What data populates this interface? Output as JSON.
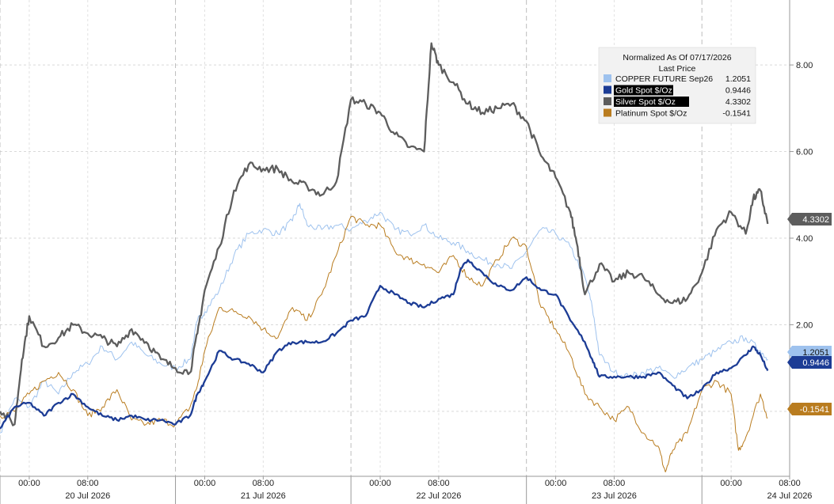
{
  "chart_data": {
    "type": "line",
    "legend": {
      "title": "Normalized As Of 07/17/2026",
      "subtitle": "Last Price"
    },
    "y_axis": {
      "min": -1.5,
      "max": 9.5,
      "ticks": [
        {
          "value": 0,
          "label": "0.00"
        },
        {
          "value": 2,
          "label": "2.00"
        },
        {
          "value": 4,
          "label": "4.00"
        },
        {
          "value": 6,
          "label": "6.00"
        },
        {
          "value": 8,
          "label": "8.00"
        }
      ],
      "position": "right"
    },
    "x_axis": {
      "days": [
        "20 Jul 2026",
        "21 Jul 2026",
        "22 Jul 2026",
        "23 Jul 2026",
        "24 Jul 2026"
      ],
      "hour_labels": [
        "00:00",
        "08:00"
      ],
      "range_hours": [
        -4,
        104
      ]
    },
    "grid": true,
    "series": [
      {
        "name": "COPPER FUTURE Sep26",
        "last": "1.2051",
        "color": "#9ec2ee",
        "width": 1,
        "points": [
          [
            -4,
            -0.5
          ],
          [
            -2,
            0.3
          ],
          [
            0,
            0.1
          ],
          [
            2,
            0.7
          ],
          [
            4,
            0.4
          ],
          [
            6,
            0.9
          ],
          [
            8,
            1.1
          ],
          [
            10,
            1.5
          ],
          [
            12,
            1.2
          ],
          [
            14,
            1.6
          ],
          [
            16,
            1.3
          ],
          [
            18,
            1.1
          ],
          [
            20,
            1.0
          ],
          [
            22,
            1.2
          ],
          [
            23,
            2.1
          ],
          [
            24,
            2.3
          ],
          [
            26,
            2.8
          ],
          [
            28,
            3.6
          ],
          [
            30,
            4.1
          ],
          [
            32,
            4.2
          ],
          [
            34,
            4.1
          ],
          [
            36,
            4.4
          ],
          [
            37,
            4.8
          ],
          [
            38,
            4.3
          ],
          [
            40,
            4.2
          ],
          [
            42,
            4.3
          ],
          [
            44,
            4.2
          ],
          [
            46,
            4.4
          ],
          [
            48,
            4.6
          ],
          [
            50,
            4.2
          ],
          [
            52,
            4.1
          ],
          [
            54,
            4.3
          ],
          [
            56,
            4.0
          ],
          [
            58,
            3.9
          ],
          [
            60,
            3.7
          ],
          [
            62,
            3.5
          ],
          [
            64,
            3.4
          ],
          [
            66,
            3.3
          ],
          [
            68,
            3.7
          ],
          [
            70,
            4.2
          ],
          [
            72,
            4.1
          ],
          [
            74,
            3.8
          ],
          [
            76,
            3.1
          ],
          [
            77,
            2.4
          ],
          [
            78,
            1.3
          ],
          [
            80,
            0.9
          ],
          [
            82,
            0.8
          ],
          [
            84,
            0.9
          ],
          [
            86,
            1.0
          ],
          [
            88,
            0.8
          ],
          [
            90,
            1.0
          ],
          [
            92,
            1.2
          ],
          [
            94,
            1.4
          ],
          [
            96,
            1.6
          ],
          [
            98,
            1.7
          ],
          [
            100,
            1.4
          ],
          [
            101,
            1.2
          ]
        ]
      },
      {
        "name": "Gold Spot $/Oz",
        "last": "0.9446",
        "color": "#1c3c95",
        "width": 2.3,
        "points": [
          [
            -4,
            -0.4
          ],
          [
            -2,
            0.1
          ],
          [
            0,
            0.2
          ],
          [
            2,
            -0.1
          ],
          [
            4,
            0.2
          ],
          [
            6,
            0.4
          ],
          [
            8,
            0.1
          ],
          [
            10,
            -0.1
          ],
          [
            12,
            -0.2
          ],
          [
            14,
            -0.1
          ],
          [
            16,
            -0.2
          ],
          [
            18,
            -0.2
          ],
          [
            20,
            -0.3
          ],
          [
            22,
            -0.1
          ],
          [
            23,
            0.4
          ],
          [
            24,
            0.7
          ],
          [
            26,
            1.4
          ],
          [
            28,
            1.2
          ],
          [
            30,
            1.1
          ],
          [
            32,
            0.9
          ],
          [
            34,
            1.4
          ],
          [
            36,
            1.6
          ],
          [
            38,
            1.6
          ],
          [
            40,
            1.6
          ],
          [
            42,
            1.8
          ],
          [
            44,
            2.1
          ],
          [
            46,
            2.2
          ],
          [
            48,
            2.9
          ],
          [
            50,
            2.7
          ],
          [
            52,
            2.5
          ],
          [
            54,
            2.4
          ],
          [
            56,
            2.6
          ],
          [
            58,
            2.7
          ],
          [
            59,
            3.3
          ],
          [
            60,
            3.5
          ],
          [
            62,
            3.2
          ],
          [
            64,
            2.9
          ],
          [
            66,
            2.8
          ],
          [
            68,
            3.1
          ],
          [
            70,
            2.8
          ],
          [
            72,
            2.7
          ],
          [
            74,
            2.1
          ],
          [
            76,
            1.6
          ],
          [
            77,
            1.2
          ],
          [
            78,
            0.8
          ],
          [
            80,
            0.8
          ],
          [
            82,
            0.8
          ],
          [
            84,
            0.8
          ],
          [
            86,
            0.9
          ],
          [
            88,
            0.6
          ],
          [
            90,
            0.3
          ],
          [
            92,
            0.5
          ],
          [
            94,
            0.9
          ],
          [
            96,
            1.0
          ],
          [
            98,
            1.3
          ],
          [
            99,
            1.5
          ],
          [
            100,
            1.3
          ],
          [
            101,
            0.94
          ]
        ]
      },
      {
        "name": "Silver Spot $/Oz",
        "last": "4.3302",
        "color": "#5d5d5d",
        "width": 2.3,
        "points": [
          [
            -4,
            0.0
          ],
          [
            -2,
            -0.3
          ],
          [
            -1,
            1.2
          ],
          [
            0,
            2.2
          ],
          [
            2,
            1.5
          ],
          [
            4,
            1.7
          ],
          [
            6,
            2.0
          ],
          [
            8,
            1.8
          ],
          [
            10,
            1.7
          ],
          [
            12,
            1.5
          ],
          [
            14,
            1.9
          ],
          [
            16,
            1.6
          ],
          [
            18,
            1.2
          ],
          [
            20,
            1.0
          ],
          [
            22,
            0.9
          ],
          [
            23,
            1.8
          ],
          [
            24,
            2.8
          ],
          [
            26,
            3.8
          ],
          [
            28,
            5.1
          ],
          [
            30,
            5.7
          ],
          [
            32,
            5.6
          ],
          [
            34,
            5.6
          ],
          [
            36,
            5.3
          ],
          [
            38,
            5.2
          ],
          [
            40,
            5.0
          ],
          [
            42,
            5.3
          ],
          [
            44,
            7.2
          ],
          [
            46,
            7.1
          ],
          [
            48,
            6.9
          ],
          [
            50,
            6.4
          ],
          [
            52,
            6.1
          ],
          [
            54,
            6.0
          ],
          [
            55,
            8.5
          ],
          [
            56,
            8.0
          ],
          [
            58,
            7.6
          ],
          [
            60,
            7.1
          ],
          [
            62,
            6.9
          ],
          [
            64,
            7.0
          ],
          [
            66,
            7.1
          ],
          [
            68,
            6.7
          ],
          [
            70,
            5.9
          ],
          [
            72,
            5.4
          ],
          [
            74,
            4.6
          ],
          [
            75,
            3.8
          ],
          [
            76,
            2.7
          ],
          [
            78,
            3.4
          ],
          [
            80,
            3.0
          ],
          [
            82,
            3.2
          ],
          [
            84,
            3.1
          ],
          [
            86,
            2.7
          ],
          [
            88,
            2.5
          ],
          [
            90,
            2.6
          ],
          [
            92,
            3.2
          ],
          [
            94,
            4.2
          ],
          [
            96,
            4.6
          ],
          [
            98,
            4.1
          ],
          [
            99,
            4.9
          ],
          [
            100,
            5.1
          ],
          [
            101,
            4.33
          ]
        ]
      },
      {
        "name": "Platinum Spot $/Oz",
        "last": "-0.1541",
        "color": "#b97c1f",
        "width": 1,
        "points": [
          [
            -4,
            -0.1
          ],
          [
            -2,
            0.0
          ],
          [
            0,
            0.4
          ],
          [
            2,
            0.7
          ],
          [
            4,
            0.9
          ],
          [
            6,
            0.5
          ],
          [
            8,
            -0.1
          ],
          [
            10,
            0.1
          ],
          [
            12,
            0.5
          ],
          [
            14,
            -0.2
          ],
          [
            16,
            -0.3
          ],
          [
            18,
            -0.2
          ],
          [
            20,
            -0.3
          ],
          [
            22,
            0.1
          ],
          [
            23,
            0.6
          ],
          [
            24,
            1.4
          ],
          [
            26,
            2.4
          ],
          [
            28,
            2.3
          ],
          [
            30,
            2.2
          ],
          [
            32,
            1.9
          ],
          [
            34,
            1.7
          ],
          [
            36,
            2.4
          ],
          [
            38,
            2.1
          ],
          [
            40,
            2.7
          ],
          [
            42,
            3.6
          ],
          [
            44,
            4.5
          ],
          [
            46,
            4.3
          ],
          [
            48,
            4.3
          ],
          [
            50,
            3.7
          ],
          [
            52,
            3.5
          ],
          [
            54,
            3.4
          ],
          [
            56,
            3.2
          ],
          [
            58,
            3.6
          ],
          [
            60,
            3.1
          ],
          [
            62,
            2.9
          ],
          [
            64,
            3.5
          ],
          [
            66,
            4.0
          ],
          [
            68,
            3.8
          ],
          [
            70,
            2.4
          ],
          [
            72,
            1.9
          ],
          [
            74,
            1.3
          ],
          [
            76,
            0.4
          ],
          [
            78,
            0.1
          ],
          [
            80,
            -0.2
          ],
          [
            82,
            0.1
          ],
          [
            84,
            -0.5
          ],
          [
            86,
            -0.8
          ],
          [
            87,
            -1.4
          ],
          [
            88,
            -0.9
          ],
          [
            90,
            -0.5
          ],
          [
            92,
            0.5
          ],
          [
            94,
            0.7
          ],
          [
            96,
            0.4
          ],
          [
            97,
            -0.9
          ],
          [
            98,
            -0.6
          ],
          [
            100,
            0.4
          ],
          [
            101,
            -0.15
          ]
        ]
      }
    ]
  }
}
